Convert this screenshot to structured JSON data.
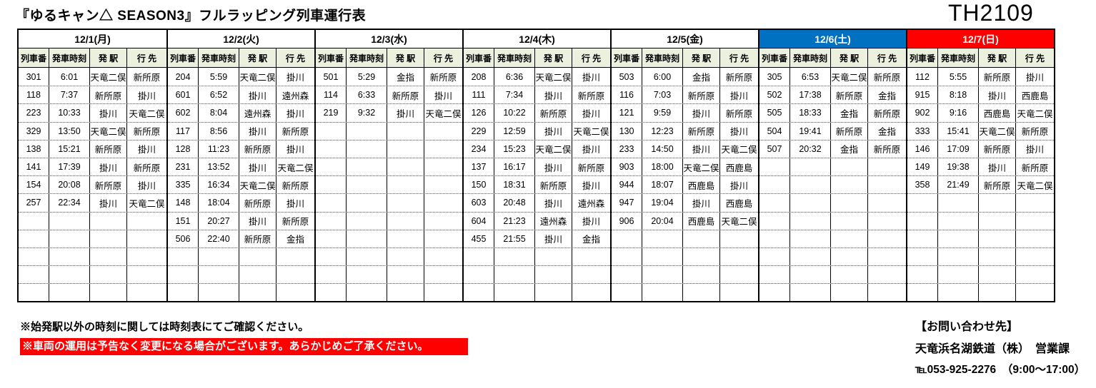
{
  "title": "『ゆるキャン△ SEASON3』フルラッピング列車運行表",
  "doc_code": "TH2109",
  "colors": {
    "saturday_blue": "#0070C0",
    "sunday_red": "#FF0000",
    "alert_red": "#FF0000",
    "header_green": "#EBF1DE"
  },
  "table": {
    "column_headers": [
      "列車番",
      "発車時刻",
      "発 駅",
      "行 先"
    ],
    "rows_per_day": 13,
    "days": [
      {
        "label": "12/1(月)",
        "type": "weekday",
        "trains": [
          [
            "301",
            "6:01",
            "天竜二俣",
            "新所原"
          ],
          [
            "118",
            "7:37",
            "新所原",
            "掛川"
          ],
          [
            "223",
            "10:33",
            "掛川",
            "天竜二俣"
          ],
          [
            "329",
            "13:50",
            "天竜二俣",
            "新所原"
          ],
          [
            "138",
            "15:21",
            "新所原",
            "掛川"
          ],
          [
            "141",
            "17:39",
            "掛川",
            "新所原"
          ],
          [
            "154",
            "20:08",
            "新所原",
            "掛川"
          ],
          [
            "257",
            "22:34",
            "掛川",
            "天竜二俣"
          ]
        ]
      },
      {
        "label": "12/2(火)",
        "type": "weekday",
        "trains": [
          [
            "204",
            "5:59",
            "天竜二俣",
            "掛川"
          ],
          [
            "601",
            "6:52",
            "掛川",
            "遠州森"
          ],
          [
            "602",
            "8:04",
            "遠州森",
            "掛川"
          ],
          [
            "117",
            "8:56",
            "掛川",
            "新所原"
          ],
          [
            "128",
            "11:23",
            "新所原",
            "掛川"
          ],
          [
            "231",
            "13:52",
            "掛川",
            "天竜二俣"
          ],
          [
            "335",
            "16:34",
            "天竜二俣",
            "新所原"
          ],
          [
            "148",
            "18:04",
            "新所原",
            "掛川"
          ],
          [
            "151",
            "20:27",
            "掛川",
            "新所原"
          ],
          [
            "506",
            "22:40",
            "新所原",
            "金指"
          ]
        ]
      },
      {
        "label": "12/3(水)",
        "type": "weekday",
        "trains": [
          [
            "501",
            "5:29",
            "金指",
            "新所原"
          ],
          [
            "114",
            "6:33",
            "新所原",
            "掛川"
          ],
          [
            "219",
            "9:32",
            "掛川",
            "天竜二俣"
          ]
        ]
      },
      {
        "label": "12/4(木)",
        "type": "weekday",
        "trains": [
          [
            "208",
            "6:36",
            "天竜二俣",
            "掛川"
          ],
          [
            "111",
            "7:34",
            "掛川",
            "新所原"
          ],
          [
            "126",
            "10:22",
            "新所原",
            "掛川"
          ],
          [
            "229",
            "12:59",
            "掛川",
            "天竜二俣"
          ],
          [
            "234",
            "15:23",
            "天竜二俣",
            "掛川"
          ],
          [
            "137",
            "16:17",
            "掛川",
            "新所原"
          ],
          [
            "150",
            "18:31",
            "新所原",
            "掛川"
          ],
          [
            "603",
            "20:48",
            "掛川",
            "遠州森"
          ],
          [
            "604",
            "21:23",
            "遠州森",
            "掛川"
          ],
          [
            "455",
            "21:55",
            "掛川",
            "金指"
          ]
        ]
      },
      {
        "label": "12/5(金)",
        "type": "weekday",
        "trains": [
          [
            "503",
            "6:00",
            "金指",
            "新所原"
          ],
          [
            "116",
            "7:03",
            "新所原",
            "掛川"
          ],
          [
            "121",
            "9:59",
            "掛川",
            "新所原"
          ],
          [
            "130",
            "12:23",
            "新所原",
            "掛川"
          ],
          [
            "233",
            "14:50",
            "掛川",
            "天竜二俣"
          ],
          [
            "903",
            "18:00",
            "天竜二俣",
            "西鹿島"
          ],
          [
            "944",
            "18:07",
            "西鹿島",
            "掛川"
          ],
          [
            "947",
            "19:04",
            "掛川",
            "西鹿島"
          ],
          [
            "906",
            "20:04",
            "西鹿島",
            "天竜二俣"
          ]
        ]
      },
      {
        "label": "12/6(土)",
        "type": "saturday",
        "trains": [
          [
            "305",
            "6:53",
            "天竜二俣",
            "新所原"
          ],
          [
            "502",
            "17:38",
            "新所原",
            "金指"
          ],
          [
            "505",
            "18:33",
            "金指",
            "新所原"
          ],
          [
            "504",
            "19:41",
            "新所原",
            "金指"
          ],
          [
            "507",
            "20:32",
            "金指",
            "新所原"
          ]
        ]
      },
      {
        "label": "12/7(日)",
        "type": "sunday",
        "trains": [
          [
            "112",
            "5:55",
            "新所原",
            "掛川"
          ],
          [
            "915",
            "8:18",
            "掛川",
            "西鹿島"
          ],
          [
            "902",
            "9:16",
            "西鹿島",
            "天竜二俣"
          ],
          [
            "333",
            "15:41",
            "天竜二俣",
            "新所原"
          ],
          [
            "146",
            "17:09",
            "新所原",
            "掛川"
          ],
          [
            "149",
            "19:38",
            "掛川",
            "新所原"
          ],
          [
            "358",
            "21:49",
            "新所原",
            "天竜二俣"
          ]
        ]
      }
    ]
  },
  "notes": {
    "note1": "※始発駅以外の時刻に関しては時刻表にてご確認ください。",
    "note2": "※車両の運用は予告なく変更になる場合がございます。あらかじめご了承ください。"
  },
  "contact": {
    "heading": "【お問い合わせ先】",
    "company": "天竜浜名湖鉄道（株）　営業課",
    "phone": "℡053-925-2276　（9:00～17:00）"
  }
}
